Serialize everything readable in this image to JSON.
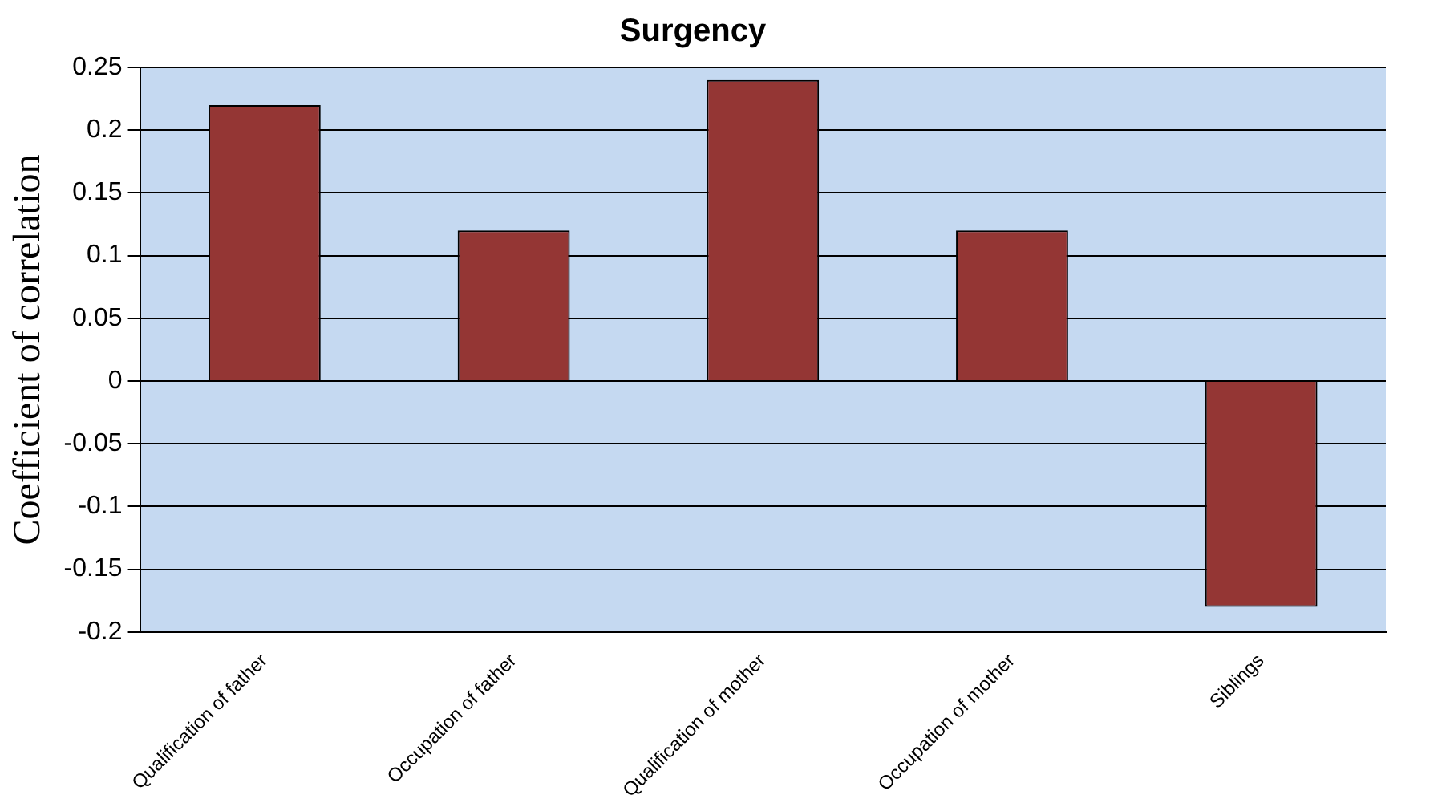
{
  "chart_data": {
    "type": "bar",
    "title": "Surgency",
    "ylabel": "Coefficient of correlation",
    "categories": [
      "Qualification of father",
      "Occupation of father",
      "Qualification of mother",
      "Occupation of mother",
      "Siblings"
    ],
    "values": [
      0.22,
      0.12,
      0.24,
      0.12,
      -0.18
    ],
    "color": "#943634",
    "ylim": [
      -0.2,
      0.25
    ],
    "yticks": [
      -0.2,
      -0.15,
      -0.1,
      -0.05,
      0,
      0.05,
      0.1,
      0.15,
      0.2,
      0.25
    ],
    "grid": "y",
    "legend": false
  }
}
